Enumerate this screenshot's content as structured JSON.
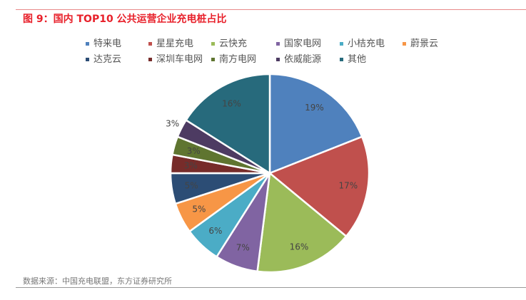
{
  "title": "图 9：国内 TOP10 公共运营企业充电桩占比",
  "source": "数据来源：中国充电联盟，东方证券研究所",
  "chart_data": {
    "type": "pie",
    "title": "",
    "legend_placement": "top",
    "categories": [
      "特来电",
      "星星充电",
      "云快充",
      "国家电网",
      "小桔充电",
      "蔚景云",
      "达克云",
      "深圳车电网",
      "南方电网",
      "依威能源",
      "其他"
    ],
    "values": [
      19,
      17,
      16,
      7,
      6,
      5,
      5,
      3,
      3,
      3,
      16
    ],
    "labels": [
      "19%",
      "17%",
      "16%",
      "7%",
      "6%",
      "5%",
      "5%",
      "3%",
      "3%",
      "3%",
      "16%"
    ],
    "colors": [
      "#4f81bd",
      "#c0504d",
      "#9bbb59",
      "#8064a2",
      "#4bacc6",
      "#f79646",
      "#2c4d75",
      "#772c2a",
      "#5f7530",
      "#4d3b62",
      "#276a7c"
    ]
  }
}
